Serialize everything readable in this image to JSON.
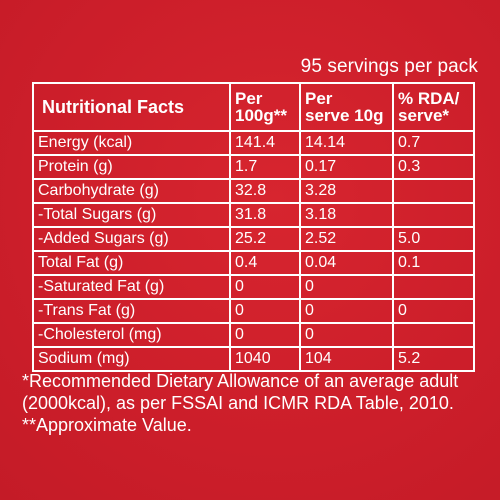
{
  "servings_text": "95 servings per pack",
  "table": {
    "headers": {
      "col1": "Nutritional Facts",
      "col2_line1": "Per",
      "col2_line2": "100g**",
      "col3_line1": "Per",
      "col3_line2": "serve 10g",
      "col4_line1": "% RDA/",
      "col4_line2": "serve*"
    },
    "rows": [
      {
        "name": "Energy (kcal)",
        "per100": "141.4",
        "perserve": "14.14",
        "rda": "0.7"
      },
      {
        "name": "Protein (g)",
        "per100": "1.7",
        "perserve": "0.17",
        "rda": "0.3"
      },
      {
        "name": "Carbohydrate (g)",
        "per100": "32.8",
        "perserve": "3.28",
        "rda": ""
      },
      {
        "name": "-Total Sugars (g)",
        "per100": "31.8",
        "perserve": "3.18",
        "rda": ""
      },
      {
        "name": "-Added Sugars (g)",
        "per100": "25.2",
        "perserve": "2.52",
        "rda": "5.0"
      },
      {
        "name": "Total Fat (g)",
        "per100": "0.4",
        "perserve": "0.04",
        "rda": "0.1"
      },
      {
        "name": "-Saturated Fat (g)",
        "per100": "0",
        "perserve": "0",
        "rda": ""
      },
      {
        "name": "-Trans Fat (g)",
        "per100": "0",
        "perserve": "0",
        "rda": "0"
      },
      {
        "name": "-Cholesterol (mg)",
        "per100": "0",
        "perserve": "0",
        "rda": ""
      },
      {
        "name": "Sodium (mg)",
        "per100": "1040",
        "perserve": "104",
        "rda": "5.2"
      }
    ]
  },
  "footnotes": {
    "line1": "*Recommended Dietary Allowance of an average adult",
    "line2": "(2000kcal), as per FSSAI and ICMR RDA Table, 2010.",
    "line3": "**Approximate Value."
  },
  "colors": {
    "background": "#cf1f2c",
    "text": "#ffffff",
    "border": "#ffffff"
  }
}
